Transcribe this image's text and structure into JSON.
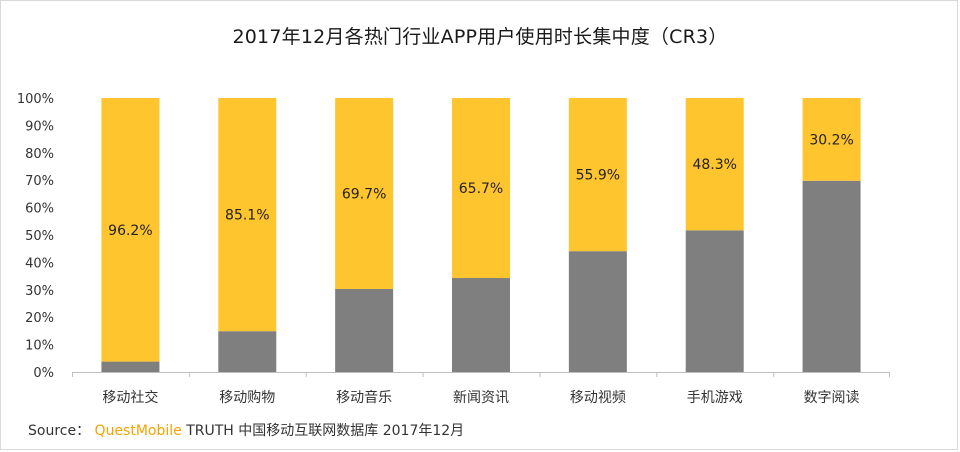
{
  "title": "2017年12月各热门行业APP用户使用时长集中度（CR3）",
  "source": {
    "prefix": "Source：",
    "brand": "QuestMobile",
    "suffix": "TRUTH 中国移动互联网数据库 2017年12月"
  },
  "colors": {
    "top": "#FFC52E",
    "bottom": "#7F7F7F",
    "axis": "#bfbfbf"
  },
  "chart_data": {
    "type": "bar",
    "stacked": true,
    "ylim": [
      0,
      100
    ],
    "yticks": [
      "0%",
      "10%",
      "20%",
      "30%",
      "40%",
      "50%",
      "60%",
      "70%",
      "80%",
      "90%",
      "100%"
    ],
    "categories": [
      "移动社交",
      "移动购物",
      "移动音乐",
      "新闻资讯",
      "移动视频",
      "手机游戏",
      "数字阅读"
    ],
    "series": [
      {
        "values": [
          3.8,
          14.9,
          30.3,
          34.3,
          44.1,
          51.7,
          69.8
        ]
      },
      {
        "values": [
          96.2,
          85.1,
          69.7,
          65.7,
          55.9,
          48.3,
          30.2
        ]
      }
    ],
    "data_labels": [
      "96.2%",
      "85.1%",
      "69.7%",
      "65.7%",
      "55.9%",
      "48.3%",
      "30.2%"
    ],
    "grid": false,
    "legend": "none"
  }
}
